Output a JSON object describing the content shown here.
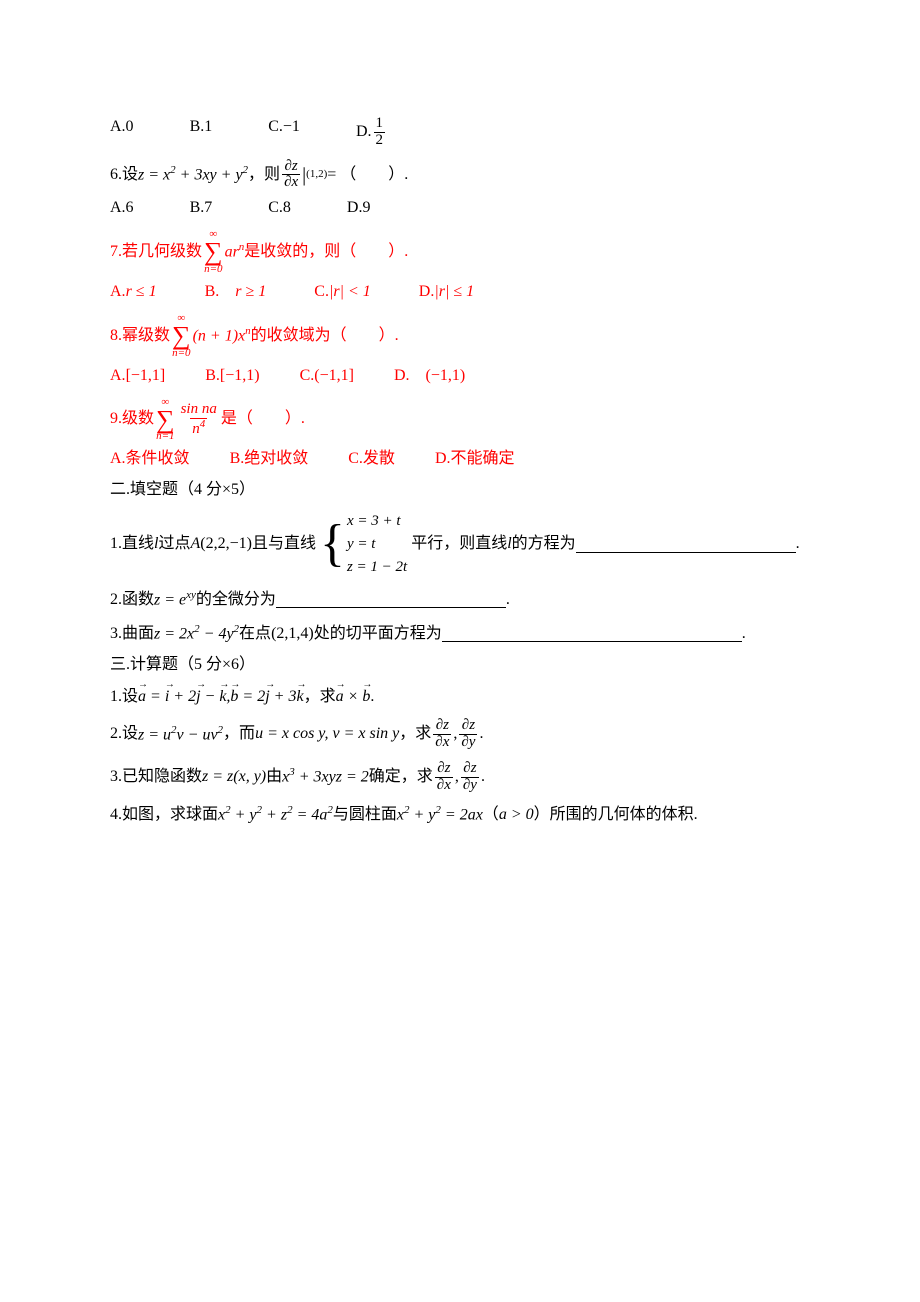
{
  "q5_options": {
    "a": "A.0",
    "b": "B.1",
    "c_pre": "C.",
    "c_val": "−1",
    "d_pre": "D.",
    "d_num": "1",
    "d_den": "2"
  },
  "q6": {
    "prefix": "6.设",
    "expr_left": "z = x",
    "expr_sq1": "2",
    "expr_mid1": " + 3xy + y",
    "expr_sq2": "2",
    "comma": "，则",
    "frac_num": "∂z",
    "frac_den": "∂x",
    "bar": "|",
    "sub_pt": "(1,2)",
    "equals": " = （　　）.",
    "opts": {
      "a": "A.6",
      "b": "B.7",
      "c": "C.8",
      "d": "D.9"
    }
  },
  "q7": {
    "prefix": "7.若几何级数",
    "sum_top": "∞",
    "sum_bot": "n=0",
    "term": "ar",
    "term_sup": "n",
    "suffix": " 是收敛的，则（　　）.",
    "opts": {
      "a_pre": "A.",
      "a_expr": "r ≤ 1",
      "b_pre": "B.　",
      "b_expr": "r ≥ 1",
      "c_pre": "C.",
      "c_expr": "|r| < 1",
      "d_pre": "D.",
      "d_expr": "|r| ≤ 1"
    }
  },
  "q8": {
    "prefix": "8.幂级数",
    "sum_top": "∞",
    "sum_bot": "n=0",
    "term1": "(n + 1)x",
    "term_sup": "n",
    "suffix": " 的收敛域为（　　）.",
    "opts": {
      "a_pre": "A.",
      "a_expr": "[−1,1]",
      "b_pre": "B.",
      "b_expr": "[−1,1)",
      "c_pre": "C.",
      "c_expr": "(−1,1]",
      "d_pre": "D.　",
      "d_expr": "(−1,1)"
    }
  },
  "q9": {
    "prefix": "9.级数",
    "sum_top": "∞",
    "sum_bot": "n=1",
    "frac_num": "sin na",
    "frac_den_n": "n",
    "frac_den_sup": "4",
    "suffix": "是（　　）.",
    "opts": {
      "a": "A.条件收敛",
      "b": "B.绝对收敛",
      "c": "C.发散",
      "d": "D.不能确定"
    }
  },
  "sec2_title": "二.填空题（4 分×5）",
  "f1": {
    "p1": "1.直线",
    "l": "l",
    "p2": " 过点 ",
    "A": "A",
    "pt": "(2,2,−1)",
    "p3": " 且与直线",
    "r1": "x = 3 + t",
    "r2": "y = t",
    "r3": "z = 1 − 2t",
    "p4": "平行，则直线",
    "p5": "的方程为",
    "blank_w": "220",
    "dot": "."
  },
  "f2": {
    "p1": "2.函数",
    "expr": "z = e",
    "sup": "xy",
    "p2": " 的全微分为",
    "blank_w": "230",
    "dot": "."
  },
  "f3": {
    "p1": "3.曲面",
    "e1": "z = 2x",
    "s1": "2",
    "e2": " − 4y",
    "s2": "2",
    "p2": " 在点",
    "pt": "(2,1,4)",
    "p3": "处的切平面方程为",
    "blank_w": "300",
    "dot": "."
  },
  "sec3_title": "三.计算题（5 分×6）",
  "c1": {
    "p1": "1.设",
    "a": "a",
    "eq1": " = ",
    "i": "i",
    "plus1": " + 2",
    "j": "j",
    "minus": " − ",
    "k": "k",
    "comma1": ",",
    "b": "b",
    "eq2": " = 2",
    "j2": "j",
    "plus2": " + 3",
    "k2": "k",
    "p2": "，求",
    "a2": "a",
    "times": " × ",
    "b2": "b",
    "dot": "."
  },
  "c2": {
    "p1": "2.设",
    "e1": "z = u",
    "s1": "2",
    "e2": "v − uv",
    "s2": "2",
    "p2": "，而",
    "e3": "u = x cos y, v = x sin y",
    "p3": "，求",
    "f1n": "∂z",
    "f1d": "∂x",
    "comma": ",",
    "f2n": "∂z",
    "f2d": "∂y",
    "dot": "."
  },
  "c3": {
    "p1": "3.已知隐函数",
    "e1": "z = z",
    "args": "(x, y)",
    "p2": "由",
    "e2": "x",
    "s1": "3",
    "e3": " + 3xyz = 2",
    "p3": "确定，求",
    "f1n": "∂z",
    "f1d": "∂x",
    "comma": ",",
    "f2n": "∂z",
    "f2d": "∂y",
    "dot": "."
  },
  "c4": {
    "p1": "4.如图，求球面",
    "e1": "x",
    "s1": "2",
    "e2": " + y",
    "s2": "2",
    "e3": " + z",
    "s3": "2",
    "e4": " = 4a",
    "s4": "2",
    "p2": " 与圆柱面",
    "e5": "x",
    "s5": "2",
    "e6": " + y",
    "s6": "2",
    "e7": " = 2ax",
    "p3": "（",
    "e8": "a > 0",
    "p4": "）所围的几何体的体积."
  }
}
